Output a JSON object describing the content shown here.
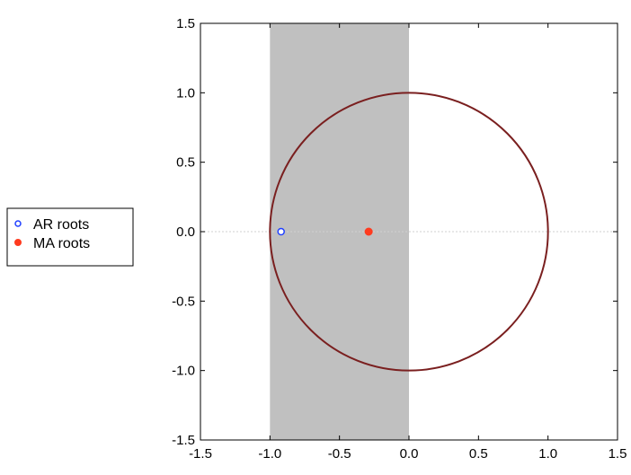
{
  "chart_data": {
    "type": "scatter",
    "title": "",
    "xlabel": "",
    "ylabel": "",
    "xlim": [
      -1.5,
      1.5
    ],
    "ylim": [
      -1.5,
      1.5
    ],
    "x_ticks": [
      "-1.5",
      "-1.0",
      "-0.5",
      "0.0",
      "0.5",
      "1.0",
      "1.5"
    ],
    "y_ticks": [
      "1.5",
      "1.0",
      "0.5",
      "0.0",
      "-0.5",
      "-1.0",
      "-1.5"
    ],
    "shaded_region": {
      "x": [
        -1.0,
        0.0
      ],
      "color": "#c0c0c0"
    },
    "unit_circle": {
      "radius": 1.0,
      "color": "#7a1f1f"
    },
    "zero_line": {
      "y": 0.0,
      "style": "dotted",
      "color": "#d0d0d0"
    },
    "grid": false,
    "legend_position": "left",
    "series": [
      {
        "name": "AR roots",
        "marker": "open-circle",
        "color": "#2040ff",
        "points": [
          {
            "x": -0.92,
            "y": 0.0
          }
        ]
      },
      {
        "name": "MA roots",
        "marker": "filled-circle",
        "color": "#ff3b1f",
        "points": [
          {
            "x": -0.29,
            "y": 0.0
          }
        ]
      }
    ]
  }
}
